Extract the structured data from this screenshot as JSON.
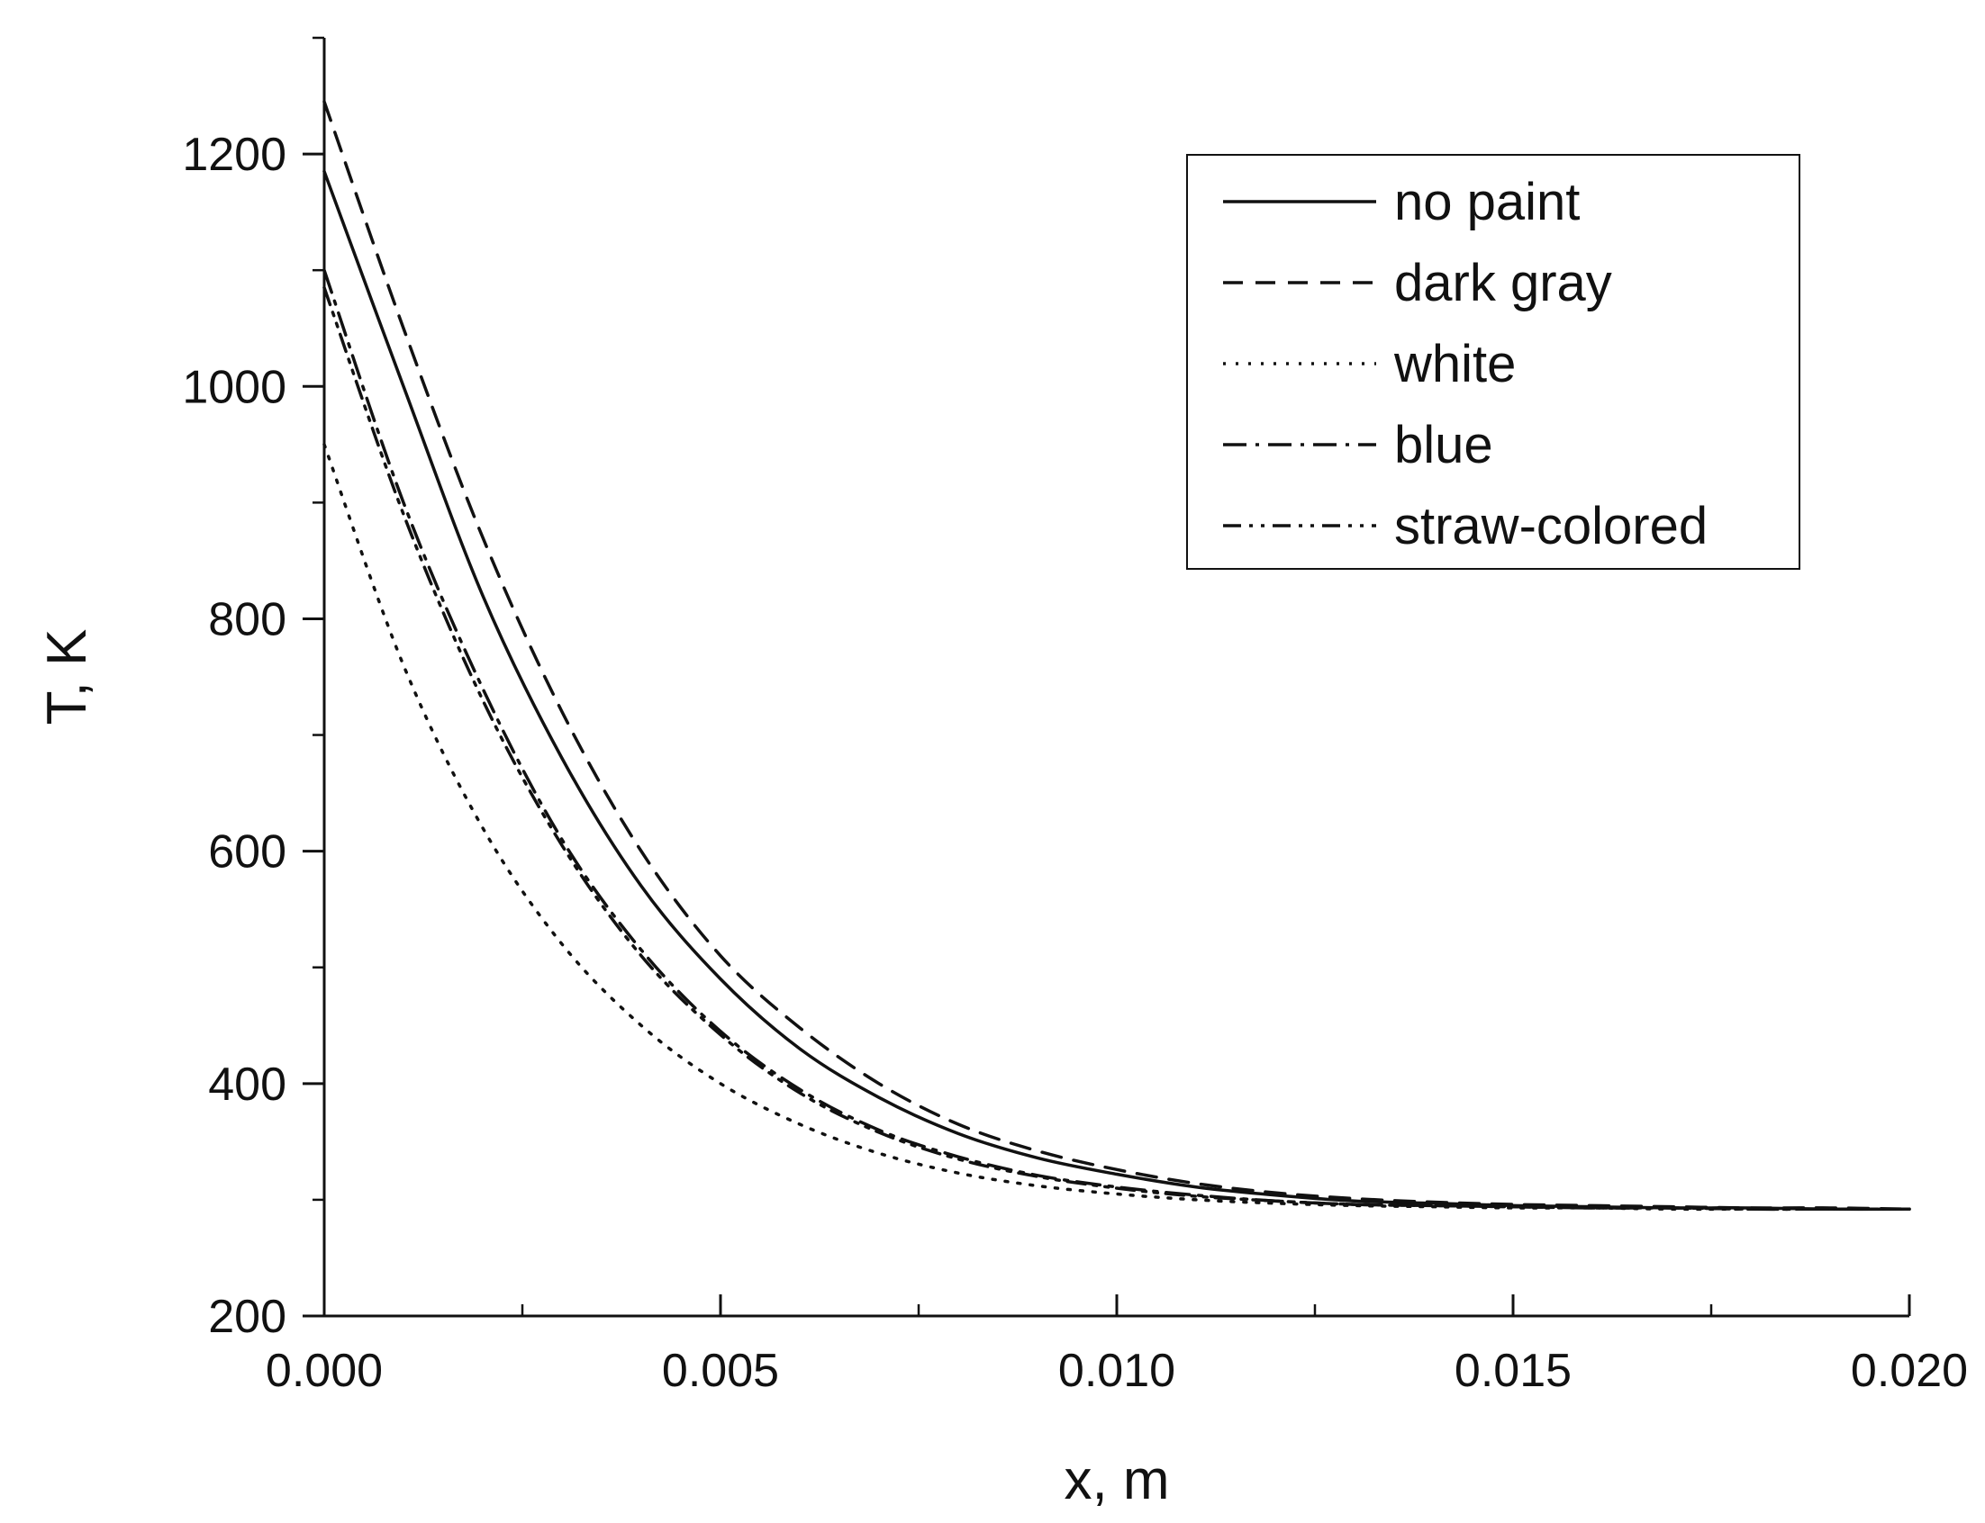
{
  "chart_data": {
    "type": "line",
    "xlabel": "x, m",
    "ylabel": "T, K",
    "xlim": [
      0.0,
      0.02
    ],
    "ylim": [
      200,
      1300
    ],
    "x_ticks": [
      0.0,
      0.005,
      0.01,
      0.015,
      0.02
    ],
    "x_tick_labels": [
      "0.000",
      "0.005",
      "0.010",
      "0.015",
      "0.020"
    ],
    "y_ticks": [
      200,
      400,
      600,
      800,
      1000,
      1200
    ],
    "y_tick_labels": [
      "200",
      "400",
      "600",
      "800",
      "1000",
      "1200"
    ],
    "grid": false,
    "legend_position": "top-right",
    "series": [
      {
        "name": "no paint",
        "dash": "solid",
        "x": [
          0,
          0.001,
          0.002,
          0.003,
          0.004,
          0.005,
          0.006,
          0.007,
          0.008,
          0.009,
          0.01,
          0.011,
          0.012,
          0.013,
          0.014,
          0.015,
          0.016,
          0.017,
          0.018,
          0.019,
          0.02
        ],
        "y": [
          1185,
          1000,
          820,
          680,
          570,
          490,
          430,
          388,
          357,
          336,
          322,
          311,
          304,
          299,
          297,
          295,
          294,
          293,
          293,
          292,
          292
        ]
      },
      {
        "name": "dark gray",
        "dash": "dashed",
        "x": [
          0,
          0.001,
          0.002,
          0.003,
          0.004,
          0.005,
          0.006,
          0.007,
          0.008,
          0.009,
          0.01,
          0.011,
          0.012,
          0.013,
          0.014,
          0.015,
          0.016,
          0.017,
          0.018,
          0.019,
          0.02
        ],
        "y": [
          1245,
          1050,
          870,
          720,
          600,
          510,
          448,
          400,
          365,
          342,
          326,
          314,
          306,
          301,
          298,
          296,
          295,
          294,
          293,
          293,
          292
        ]
      },
      {
        "name": "white",
        "dash": "dotted",
        "x": [
          0,
          0.001,
          0.002,
          0.003,
          0.004,
          0.005,
          0.006,
          0.007,
          0.008,
          0.009,
          0.01,
          0.011,
          0.012,
          0.013,
          0.014,
          0.015,
          0.016,
          0.017,
          0.018,
          0.019,
          0.02
        ],
        "y": [
          950,
          760,
          620,
          520,
          450,
          400,
          365,
          340,
          323,
          312,
          305,
          300,
          297,
          295,
          294,
          293,
          293,
          292,
          292,
          292,
          292
        ]
      },
      {
        "name": "blue",
        "dash": "dash-dot",
        "x": [
          0,
          0.001,
          0.002,
          0.003,
          0.004,
          0.005,
          0.006,
          0.007,
          0.008,
          0.009,
          0.01,
          0.011,
          0.012,
          0.013,
          0.014,
          0.015,
          0.016,
          0.017,
          0.018,
          0.019,
          0.02
        ],
        "y": [
          1100,
          900,
          740,
          610,
          515,
          445,
          395,
          360,
          337,
          321,
          311,
          304,
          299,
          296,
          295,
          294,
          293,
          293,
          292,
          292,
          292
        ]
      },
      {
        "name": "straw-colored",
        "dash": "dash-dot-dot",
        "x": [
          0,
          0.001,
          0.002,
          0.003,
          0.004,
          0.005,
          0.006,
          0.007,
          0.008,
          0.009,
          0.01,
          0.011,
          0.012,
          0.013,
          0.014,
          0.015,
          0.016,
          0.017,
          0.018,
          0.019,
          0.02
        ],
        "y": [
          1085,
          890,
          730,
          605,
          510,
          442,
          392,
          358,
          335,
          320,
          310,
          303,
          299,
          296,
          295,
          294,
          293,
          293,
          292,
          292,
          292
        ]
      }
    ]
  }
}
